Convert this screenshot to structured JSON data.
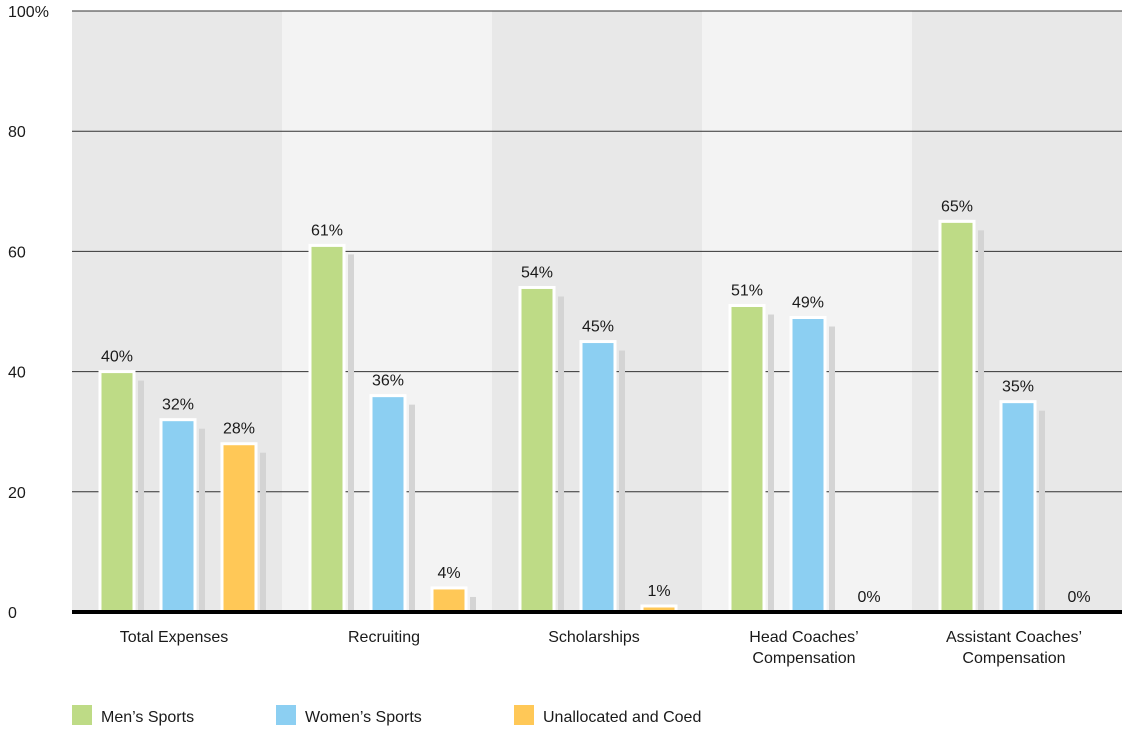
{
  "chart_data": {
    "type": "bar",
    "categories": [
      [
        "Total Expenses"
      ],
      [
        "Recruiting"
      ],
      [
        "Scholarships"
      ],
      [
        "Head Coaches’",
        "Compensation"
      ],
      [
        "Assistant Coaches’",
        "Compensation"
      ]
    ],
    "series": [
      {
        "name": "Men’s Sports",
        "color": "#bedb86",
        "values": [
          40,
          61,
          54,
          51,
          65
        ],
        "labels": [
          "40%",
          "61%",
          "54%",
          "51%",
          "65%"
        ]
      },
      {
        "name": "Women’s Sports",
        "color": "#8ccff2",
        "values": [
          32,
          36,
          45,
          49,
          35
        ],
        "labels": [
          "32%",
          "36%",
          "45%",
          "49%",
          "35%"
        ]
      },
      {
        "name": "Unallocated and Coed",
        "color": "#ffc857",
        "values": [
          28,
          4,
          1,
          0,
          0
        ],
        "labels": [
          "28%",
          "4%",
          "1%",
          "0%",
          "0%"
        ]
      }
    ],
    "yticks": [
      "0",
      "20",
      "40",
      "60",
      "80",
      "100%"
    ],
    "ylim": [
      0,
      100
    ],
    "grid": true,
    "legend": "bottom-left",
    "title": "",
    "xlabel": "",
    "ylabel": ""
  }
}
